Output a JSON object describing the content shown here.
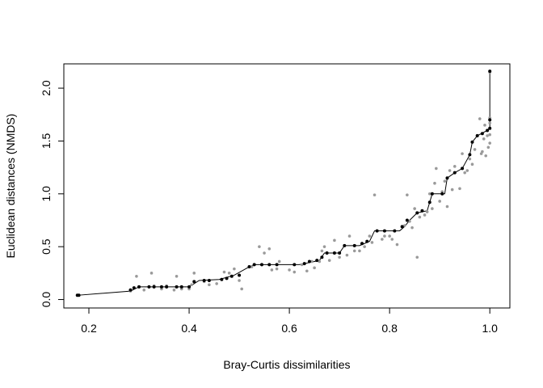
{
  "chart_data": {
    "type": "scatter",
    "title": "",
    "xlabel": "Bray-Curtis dissimilarities",
    "ylabel": "Euclidean distances (NMDS)",
    "xlim": [
      0.15,
      1.04
    ],
    "ylim": [
      -0.08,
      2.23
    ],
    "x_ticks": [
      0.2,
      0.4,
      0.6,
      0.8,
      1.0
    ],
    "x_tick_labels": [
      "0.2",
      "0.4",
      "0.6",
      "0.8",
      "1.0"
    ],
    "y_ticks": [
      0.0,
      0.5,
      1.0,
      1.5,
      2.0
    ],
    "y_tick_labels": [
      "0.0",
      "0.5",
      "1.0",
      "1.5",
      "2.0"
    ],
    "grid": false,
    "legend": "none",
    "colors": {
      "observed": "#9a9a9a",
      "fitted": "#000000",
      "step_line": "#000000",
      "frame": "#000000"
    },
    "series": [
      {
        "points": [
          [
            0.177,
            0.04
          ],
          [
            0.283,
            0.08
          ],
          [
            0.295,
            0.22
          ],
          [
            0.3,
            0.12
          ],
          [
            0.31,
            0.09
          ],
          [
            0.325,
            0.25
          ],
          [
            0.33,
            0.13
          ],
          [
            0.345,
            0.1
          ],
          [
            0.355,
            0.13
          ],
          [
            0.37,
            0.09
          ],
          [
            0.375,
            0.22
          ],
          [
            0.385,
            0.1
          ],
          [
            0.4,
            0.1
          ],
          [
            0.405,
            0.14
          ],
          [
            0.41,
            0.25
          ],
          [
            0.43,
            0.17
          ],
          [
            0.44,
            0.14
          ],
          [
            0.455,
            0.15
          ],
          [
            0.47,
            0.26
          ],
          [
            0.48,
            0.25
          ],
          [
            0.49,
            0.29
          ],
          [
            0.5,
            0.18
          ],
          [
            0.505,
            0.1
          ],
          [
            0.525,
            0.31
          ],
          [
            0.54,
            0.5
          ],
          [
            0.545,
            0.33
          ],
          [
            0.55,
            0.44
          ],
          [
            0.56,
            0.48
          ],
          [
            0.565,
            0.28
          ],
          [
            0.575,
            0.29
          ],
          [
            0.58,
            0.36
          ],
          [
            0.6,
            0.28
          ],
          [
            0.61,
            0.26
          ],
          [
            0.625,
            0.33
          ],
          [
            0.635,
            0.27
          ],
          [
            0.645,
            0.36
          ],
          [
            0.65,
            0.3
          ],
          [
            0.66,
            0.36
          ],
          [
            0.665,
            0.46
          ],
          [
            0.67,
            0.5
          ],
          [
            0.68,
            0.37
          ],
          [
            0.69,
            0.56
          ],
          [
            0.7,
            0.4
          ],
          [
            0.715,
            0.42
          ],
          [
            0.72,
            0.6
          ],
          [
            0.73,
            0.46
          ],
          [
            0.74,
            0.46
          ],
          [
            0.75,
            0.5
          ],
          [
            0.76,
            0.6
          ],
          [
            0.765,
            0.54
          ],
          [
            0.77,
            0.99
          ],
          [
            0.785,
            0.57
          ],
          [
            0.79,
            0.6
          ],
          [
            0.8,
            0.6
          ],
          [
            0.805,
            0.57
          ],
          [
            0.815,
            0.52
          ],
          [
            0.83,
            0.7
          ],
          [
            0.835,
            0.99
          ],
          [
            0.84,
            0.74
          ],
          [
            0.845,
            0.68
          ],
          [
            0.85,
            0.86
          ],
          [
            0.855,
            0.4
          ],
          [
            0.86,
            0.78
          ],
          [
            0.87,
            0.8
          ],
          [
            0.875,
            0.83
          ],
          [
            0.88,
            1.0
          ],
          [
            0.885,
            0.86
          ],
          [
            0.89,
            1.1
          ],
          [
            0.893,
            1.24
          ],
          [
            0.9,
            0.93
          ],
          [
            0.905,
            1.02
          ],
          [
            0.91,
            1.12
          ],
          [
            0.915,
            0.88
          ],
          [
            0.92,
            1.22
          ],
          [
            0.925,
            1.04
          ],
          [
            0.93,
            1.26
          ],
          [
            0.94,
            1.05
          ],
          [
            0.945,
            1.38
          ],
          [
            0.95,
            1.2
          ],
          [
            0.955,
            1.22
          ],
          [
            0.96,
            1.33
          ],
          [
            0.965,
            1.28
          ],
          [
            0.97,
            1.42
          ],
          [
            0.975,
            1.55
          ],
          [
            0.98,
            1.71
          ],
          [
            0.983,
            1.38
          ],
          [
            0.985,
            1.4
          ],
          [
            0.988,
            1.52
          ],
          [
            0.99,
            1.65
          ],
          [
            0.992,
            1.36
          ],
          [
            0.995,
            1.55
          ],
          [
            0.997,
            1.44
          ],
          [
            1.0,
            1.48
          ],
          [
            1.0,
            1.56
          ],
          [
            1.0,
            1.62
          ],
          [
            1.0,
            1.67
          ],
          [
            1.0,
            1.72
          ],
          [
            1.0,
            2.15
          ]
        ]
      },
      {
        "points": [
          [
            0.177,
            0.04
          ],
          [
            0.18,
            0.04
          ],
          [
            0.283,
            0.09
          ],
          [
            0.29,
            0.11
          ],
          [
            0.3,
            0.12
          ],
          [
            0.32,
            0.12
          ],
          [
            0.33,
            0.12
          ],
          [
            0.345,
            0.12
          ],
          [
            0.355,
            0.12
          ],
          [
            0.375,
            0.12
          ],
          [
            0.385,
            0.12
          ],
          [
            0.4,
            0.12
          ],
          [
            0.41,
            0.17
          ],
          [
            0.43,
            0.18
          ],
          [
            0.44,
            0.18
          ],
          [
            0.465,
            0.19
          ],
          [
            0.475,
            0.2
          ],
          [
            0.485,
            0.22
          ],
          [
            0.5,
            0.23
          ],
          [
            0.52,
            0.31
          ],
          [
            0.53,
            0.33
          ],
          [
            0.545,
            0.33
          ],
          [
            0.56,
            0.33
          ],
          [
            0.575,
            0.33
          ],
          [
            0.61,
            0.33
          ],
          [
            0.63,
            0.34
          ],
          [
            0.64,
            0.36
          ],
          [
            0.655,
            0.37
          ],
          [
            0.665,
            0.4
          ],
          [
            0.675,
            0.44
          ],
          [
            0.69,
            0.44
          ],
          [
            0.7,
            0.44
          ],
          [
            0.71,
            0.51
          ],
          [
            0.73,
            0.51
          ],
          [
            0.745,
            0.53
          ],
          [
            0.755,
            0.55
          ],
          [
            0.775,
            0.65
          ],
          [
            0.79,
            0.65
          ],
          [
            0.81,
            0.65
          ],
          [
            0.825,
            0.69
          ],
          [
            0.835,
            0.75
          ],
          [
            0.855,
            0.82
          ],
          [
            0.865,
            0.84
          ],
          [
            0.88,
            0.92
          ],
          [
            0.885,
            1.0
          ],
          [
            0.905,
            1.0
          ],
          [
            0.915,
            1.15
          ],
          [
            0.93,
            1.2
          ],
          [
            0.945,
            1.24
          ],
          [
            0.96,
            1.37
          ],
          [
            0.965,
            1.49
          ],
          [
            0.975,
            1.55
          ],
          [
            0.985,
            1.57
          ],
          [
            0.995,
            1.6
          ],
          [
            1.0,
            1.62
          ],
          [
            1.0,
            1.7
          ],
          [
            1.0,
            2.16
          ]
        ]
      }
    ],
    "step_line": [
      [
        0.177,
        0.04
      ],
      [
        0.283,
        0.08
      ],
      [
        0.3,
        0.12
      ],
      [
        0.4,
        0.12
      ],
      [
        0.42,
        0.18
      ],
      [
        0.46,
        0.19
      ],
      [
        0.49,
        0.23
      ],
      [
        0.52,
        0.31
      ],
      [
        0.53,
        0.33
      ],
      [
        0.62,
        0.33
      ],
      [
        0.66,
        0.37
      ],
      [
        0.67,
        0.44
      ],
      [
        0.7,
        0.44
      ],
      [
        0.71,
        0.51
      ],
      [
        0.74,
        0.51
      ],
      [
        0.76,
        0.55
      ],
      [
        0.77,
        0.65
      ],
      [
        0.82,
        0.65
      ],
      [
        0.83,
        0.69
      ],
      [
        0.84,
        0.75
      ],
      [
        0.855,
        0.82
      ],
      [
        0.875,
        0.84
      ],
      [
        0.885,
        1.0
      ],
      [
        0.91,
        1.0
      ],
      [
        0.915,
        1.15
      ],
      [
        0.93,
        1.2
      ],
      [
        0.945,
        1.24
      ],
      [
        0.96,
        1.37
      ],
      [
        0.965,
        1.49
      ],
      [
        0.975,
        1.55
      ],
      [
        0.995,
        1.6
      ],
      [
        1.0,
        1.62
      ],
      [
        1.0,
        1.75
      ],
      [
        1.0,
        2.16
      ]
    ]
  }
}
